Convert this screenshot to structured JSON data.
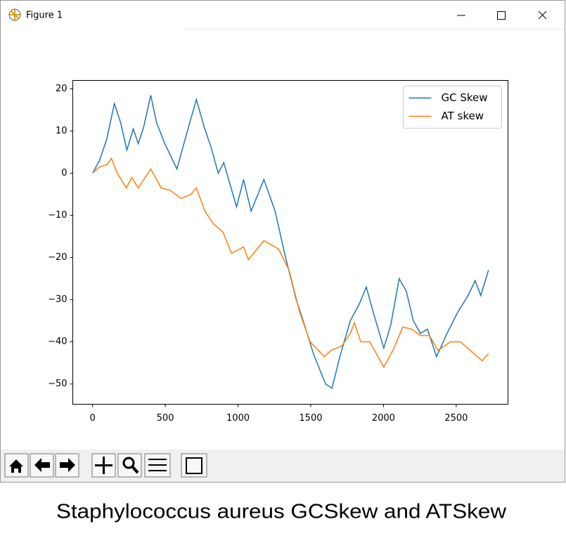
{
  "window": {
    "title": "Figure 1"
  },
  "chart_data": {
    "type": "line",
    "xlim": [
      -136,
      2856
    ],
    "ylim": [
      -54.8,
      22
    ],
    "xticks": [
      0,
      500,
      1000,
      1500,
      2000,
      2500
    ],
    "yticks": [
      {
        "value": -50,
        "label": "−50"
      },
      {
        "value": -40,
        "label": "−40"
      },
      {
        "value": -30,
        "label": "−30"
      },
      {
        "value": -20,
        "label": "−20"
      },
      {
        "value": -10,
        "label": "−10"
      },
      0,
      10,
      20
    ],
    "legend": "upper right",
    "series": [
      {
        "name": "GC Skew",
        "color": "#1f77b4",
        "x": [
          0,
          48,
          97,
          150,
          193,
          236,
          280,
          314,
          352,
          400,
          440,
          497,
          580,
          652,
          714,
          767,
          816,
          864,
          902,
          990,
          1038,
          1090,
          1178,
          1255,
          1327,
          1400,
          1448,
          1520,
          1602,
          1646,
          1704,
          1772,
          1834,
          1882,
          1930,
          2002,
          2050,
          2108,
          2157,
          2205,
          2254,
          2302,
          2365,
          2437,
          2510,
          2582,
          2630,
          2669,
          2722
        ],
        "values": [
          0,
          3,
          8,
          16.5,
          12,
          5.5,
          10.5,
          7,
          11,
          18.5,
          12,
          7,
          1,
          10,
          17.5,
          11,
          6,
          0,
          2.5,
          -8,
          -1.5,
          -9,
          -1.5,
          -9,
          -20,
          -30,
          -35,
          -43,
          -50,
          -51,
          -43,
          -35,
          -31,
          -27,
          -33,
          -41.5,
          -36,
          -25,
          -28,
          -35,
          -38,
          -37,
          -43.5,
          -38,
          -33,
          -29,
          -25.5,
          -29,
          -23
        ]
      },
      {
        "name": "AT skew",
        "color": "#ff7f0e",
        "x": [
          0,
          48,
          97,
          130,
          169,
          232,
          270,
          314,
          400,
          472,
          531,
          608,
          676,
          714,
          772,
          830,
          897,
          955,
          1038,
          1071,
          1178,
          1279,
          1351,
          1424,
          1496,
          1593,
          1641,
          1713,
          1772,
          1800,
          1844,
          1906,
          2002,
          2065,
          2133,
          2196,
          2254,
          2316,
          2374,
          2461,
          2529,
          2596,
          2678,
          2722
        ],
        "values": [
          0,
          1.5,
          2,
          3.5,
          0,
          -3.5,
          -1,
          -3.5,
          1,
          -3.5,
          -4,
          -6,
          -5,
          -3.5,
          -9,
          -12,
          -14,
          -19,
          -17.5,
          -20.5,
          -16,
          -18,
          -23,
          -33,
          -40,
          -43.5,
          -42,
          -41,
          -38,
          -35.5,
          -40,
          -40,
          -46,
          -42,
          -36.5,
          -37,
          -38.5,
          -38.5,
          -42,
          -40,
          -40,
          -42,
          -44.5,
          -42.8
        ]
      }
    ]
  },
  "caption": "Staphylococcus aureus GCSkew and ATSkew"
}
